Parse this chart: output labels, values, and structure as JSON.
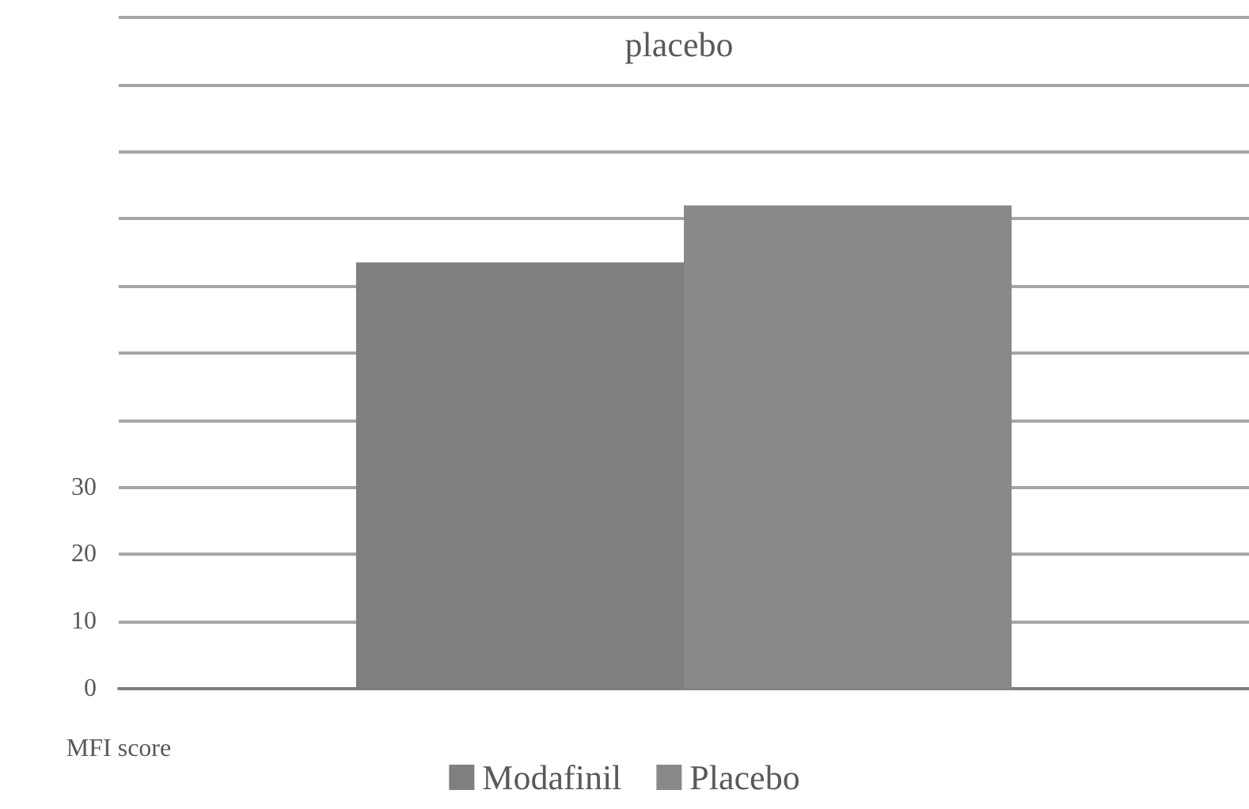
{
  "chart_data": {
    "type": "bar",
    "title": "placebo",
    "xlabel": "MFI score",
    "categories": [
      null
    ],
    "series": [
      {
        "name": "Modafinil",
        "color": "#7f7f7f",
        "values": [
          63.5
        ]
      },
      {
        "name": "Placebo",
        "color": "#898989",
        "values": [
          72
        ]
      }
    ],
    "ylim": [
      0,
      100
    ],
    "yticks": [
      0,
      10,
      20,
      30,
      {
        "value": 40,
        "label": null
      },
      {
        "value": 50,
        "label": null
      },
      {
        "value": 60,
        "label": null
      },
      {
        "value": 70,
        "label": null
      },
      {
        "value": 80,
        "label": null
      },
      {
        "value": 90,
        "label": null
      },
      {
        "value": 100,
        "label": null
      }
    ],
    "grid": "y",
    "legend": "bottom"
  }
}
